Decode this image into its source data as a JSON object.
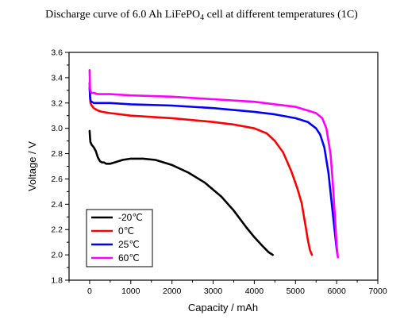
{
  "chart_data": {
    "type": "line",
    "title_parts": {
      "before": "Discharge curve of 6.0 Ah LiFePO",
      "sub": "4",
      "after": " cell at different temperatures (1C)"
    },
    "xlabel": "Capacity / mAh",
    "ylabel": "Voltage / V",
    "xlim": [
      -500,
      7000
    ],
    "ylim": [
      1.8,
      3.6
    ],
    "xticks": [
      0,
      1000,
      2000,
      3000,
      4000,
      5000,
      6000,
      7000
    ],
    "yticks": [
      1.8,
      2.0,
      2.2,
      2.4,
      2.6,
      2.8,
      3.0,
      3.2,
      3.4,
      3.6
    ],
    "grid": false,
    "legend_position": "bottom-left",
    "series": [
      {
        "name": "-20℃",
        "color": "#000000",
        "x": [
          0,
          10,
          20,
          50,
          100,
          150,
          200,
          250,
          300,
          350,
          400,
          500,
          600,
          800,
          1000,
          1300,
          1600,
          2000,
          2400,
          2800,
          3200,
          3500,
          3800,
          4000,
          4200,
          4350,
          4450
        ],
        "y": [
          2.98,
          2.92,
          2.89,
          2.87,
          2.85,
          2.82,
          2.77,
          2.74,
          2.73,
          2.73,
          2.72,
          2.72,
          2.73,
          2.75,
          2.76,
          2.76,
          2.75,
          2.71,
          2.65,
          2.57,
          2.46,
          2.35,
          2.22,
          2.14,
          2.07,
          2.02,
          2.0
        ]
      },
      {
        "name": "0℃",
        "color": "#ff0000",
        "x": [
          0,
          10,
          20,
          50,
          100,
          200,
          300,
          500,
          1000,
          2000,
          3000,
          3500,
          4000,
          4300,
          4500,
          4700,
          4900,
          5050,
          5150,
          5250,
          5300,
          5350,
          5400
        ],
        "y": [
          3.32,
          3.24,
          3.2,
          3.18,
          3.16,
          3.14,
          3.13,
          3.12,
          3.1,
          3.08,
          3.05,
          3.03,
          3.0,
          2.96,
          2.9,
          2.81,
          2.66,
          2.52,
          2.41,
          2.22,
          2.12,
          2.04,
          2.0
        ]
      },
      {
        "name": "25℃",
        "color": "#0000ff",
        "x": [
          0,
          5,
          10,
          20,
          50,
          100,
          200,
          500,
          1000,
          2000,
          3000,
          4000,
          4500,
          5000,
          5300,
          5500,
          5600,
          5700,
          5800,
          5900,
          5950,
          6000,
          6020
        ],
        "y": [
          3.36,
          3.3,
          3.25,
          3.22,
          3.21,
          3.2,
          3.2,
          3.2,
          3.19,
          3.18,
          3.16,
          3.13,
          3.11,
          3.08,
          3.05,
          3.0,
          2.95,
          2.85,
          2.65,
          2.35,
          2.2,
          2.05,
          2.0
        ]
      },
      {
        "name": "60℃",
        "color": "#ff00ff",
        "x": [
          0,
          5,
          10,
          20,
          50,
          100,
          200,
          500,
          1000,
          2000,
          3000,
          4000,
          4500,
          5000,
          5300,
          5500,
          5650,
          5750,
          5850,
          5900,
          5950,
          6000,
          6030
        ],
        "y": [
          3.46,
          3.36,
          3.31,
          3.29,
          3.28,
          3.28,
          3.27,
          3.27,
          3.26,
          3.25,
          3.23,
          3.21,
          3.19,
          3.17,
          3.14,
          3.12,
          3.08,
          3.0,
          2.8,
          2.6,
          2.35,
          2.08,
          1.98
        ]
      }
    ]
  }
}
